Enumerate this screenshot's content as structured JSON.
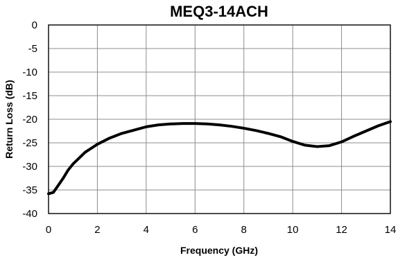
{
  "chart_data": {
    "type": "line",
    "title": "MEQ3-14ACH",
    "xlabel": "Frequency (GHz)",
    "ylabel": "Return Loss (dB)",
    "xlim": [
      0,
      14
    ],
    "ylim": [
      -40,
      0
    ],
    "x_ticks": [
      0,
      2,
      4,
      6,
      8,
      10,
      12,
      14
    ],
    "y_ticks": [
      0,
      -5,
      -10,
      -15,
      -20,
      -25,
      -30,
      -35,
      -40
    ],
    "x_tick_labels": [
      "0",
      "2",
      "4",
      "6",
      "8",
      "10",
      "12",
      "14"
    ],
    "y_tick_labels": [
      "0",
      "-5",
      "-10",
      "-15",
      "-20",
      "-25",
      "-30",
      "-35",
      "-40"
    ],
    "grid": true,
    "legend": "none",
    "series": [
      {
        "color": "#000000",
        "x": [
          0,
          0.2,
          0.4,
          0.6,
          0.8,
          1.0,
          1.2,
          1.5,
          2.0,
          2.5,
          3.0,
          3.5,
          4.0,
          4.5,
          5.0,
          5.5,
          6.0,
          6.5,
          7.0,
          7.5,
          8.0,
          8.5,
          9.0,
          9.5,
          10.0,
          10.5,
          11.0,
          11.5,
          12.0,
          12.5,
          13.0,
          13.5,
          14.0
        ],
        "y": [
          -35.8,
          -35.5,
          -34.0,
          -32.5,
          -30.8,
          -29.5,
          -28.5,
          -27.0,
          -25.3,
          -24.0,
          -23.0,
          -22.3,
          -21.6,
          -21.2,
          -21.0,
          -20.9,
          -20.9,
          -21.0,
          -21.2,
          -21.5,
          -21.9,
          -22.4,
          -23.0,
          -23.7,
          -24.7,
          -25.5,
          -25.8,
          -25.6,
          -24.8,
          -23.6,
          -22.5,
          -21.4,
          -20.5
        ]
      }
    ]
  }
}
